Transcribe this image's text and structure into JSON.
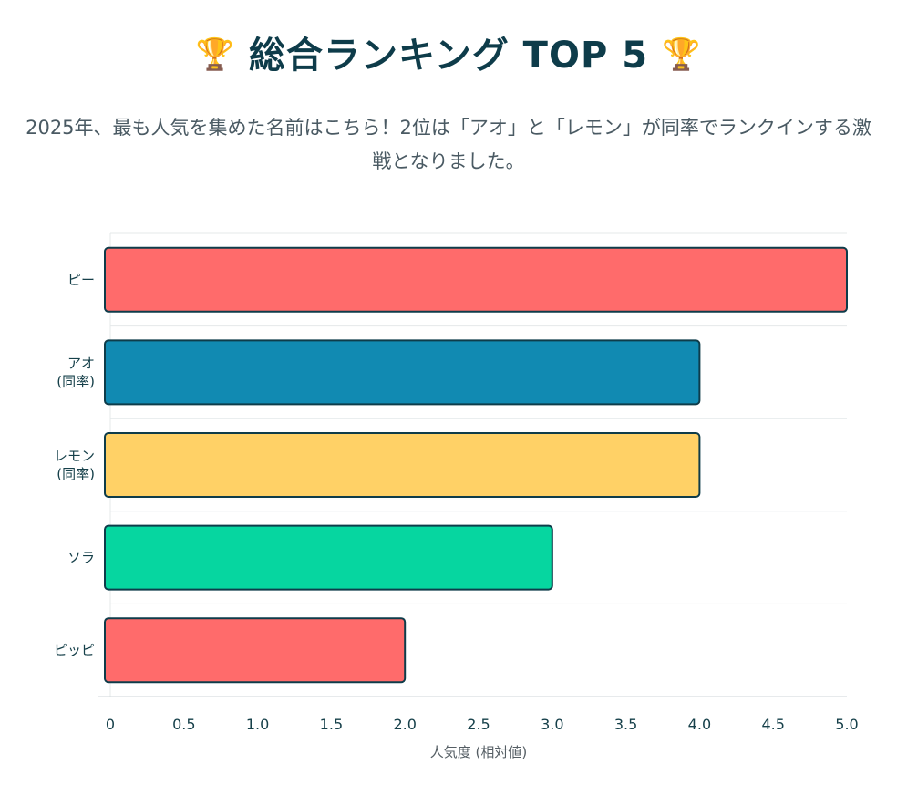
{
  "title": "総合ランキング TOP 5",
  "title_icon": "trophy-icon",
  "subtitle": "2025年、最も人気を集めた名前はこちら！2位は「アオ」と「レモン」が同率でランクインする激戦となりました。",
  "chart_data": {
    "type": "bar",
    "orientation": "horizontal",
    "categories": [
      [
        "ピー"
      ],
      [
        "アオ",
        "(同率)"
      ],
      [
        "レモン",
        "(同率)"
      ],
      [
        "ソラ"
      ],
      [
        "ピッピ"
      ]
    ],
    "values": [
      5,
      4,
      4,
      3,
      2
    ],
    "colors": [
      "#ff6b6b",
      "#118ab2",
      "#ffd166",
      "#06d6a0",
      "#ff6b6b"
    ],
    "border_color": "#0e3c4a",
    "xlim": [
      0,
      5
    ],
    "xticks": [
      "0",
      "0.5",
      "1.0",
      "1.5",
      "2.0",
      "2.5",
      "3.0",
      "3.5",
      "4.0",
      "4.5",
      "5.0"
    ],
    "xlabel": "人気度 (相対値)",
    "grid": true
  }
}
